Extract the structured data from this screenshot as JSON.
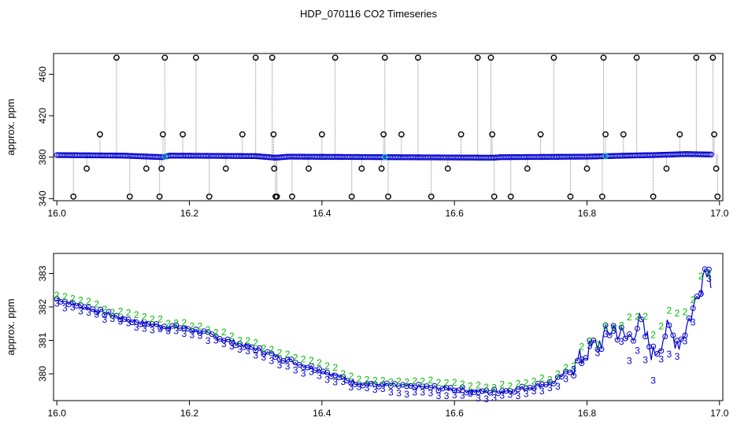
{
  "title": "HDP_070116  CO2 Timeseries",
  "chart_data": [
    {
      "type": "scatter",
      "xlabel": "",
      "ylabel": "approx. ppm",
      "xlim": [
        15.995,
        17.005
      ],
      "ylim": [
        338,
        480
      ],
      "xticks": [
        16.0,
        16.2,
        16.4,
        16.6,
        16.8,
        17.0
      ],
      "xtick_labels": [
        "16.0",
        "16.2",
        "16.4",
        "16.6",
        "16.8",
        "17.0"
      ],
      "yticks": [
        340,
        380,
        420,
        460
      ],
      "ytick_labels": [
        "340",
        "380",
        "420",
        "460"
      ],
      "grid": false,
      "colors": {
        "baseline": "#0000cc",
        "spike": "#000000",
        "highlight": "#00cccc",
        "spike_line": "#888888"
      },
      "baseline_series": {
        "name": "",
        "x": [
          16.0,
          16.1,
          16.16,
          16.17,
          16.3,
          16.33,
          16.35,
          16.5,
          16.66,
          16.67,
          16.8,
          16.83,
          16.86,
          16.9,
          16.95,
          16.99
        ],
        "y": [
          382,
          381.5,
          380,
          381.5,
          381,
          379.5,
          380.5,
          380,
          379.5,
          380,
          380.5,
          381,
          381.5,
          382,
          383,
          382.5
        ]
      },
      "spikes": {
        "name": "",
        "x": [
          16.025,
          16.045,
          16.065,
          16.09,
          16.11,
          16.135,
          16.155,
          16.158,
          16.16,
          16.163,
          16.19,
          16.21,
          16.23,
          16.255,
          16.28,
          16.3,
          16.325,
          16.327,
          16.328,
          16.33,
          16.332,
          16.355,
          16.38,
          16.4,
          16.42,
          16.445,
          16.46,
          16.49,
          16.493,
          16.495,
          16.5,
          16.52,
          16.545,
          16.565,
          16.59,
          16.61,
          16.635,
          16.655,
          16.657,
          16.66,
          16.685,
          16.71,
          16.73,
          16.75,
          16.775,
          16.8,
          16.823,
          16.825,
          16.828,
          16.855,
          16.875,
          16.9,
          16.92,
          16.94,
          16.965,
          16.99,
          16.992,
          16.995,
          16.997
        ],
        "y": [
          342,
          369,
          402,
          476,
          342,
          369,
          342,
          369,
          402,
          476,
          402,
          476,
          342,
          369,
          402,
          476,
          476,
          402,
          369,
          342,
          342,
          342,
          369,
          402,
          476,
          342,
          369,
          369,
          402,
          476,
          342,
          402,
          476,
          342,
          369,
          402,
          476,
          476,
          402,
          342,
          342,
          369,
          402,
          476,
          342,
          369,
          342,
          476,
          402,
          402,
          476,
          342,
          369,
          402,
          476,
          476,
          402,
          369,
          342
        ]
      }
    },
    {
      "type": "scatter",
      "xlabel": "",
      "ylabel": "approx. ppm",
      "xlim": [
        15.995,
        17.005
      ],
      "ylim": [
        379.2,
        383.6
      ],
      "xticks": [
        16.0,
        16.2,
        16.4,
        16.6,
        16.8,
        17.0
      ],
      "xtick_labels": [
        "16.0",
        "16.2",
        "16.4",
        "16.6",
        "16.8",
        "17.0"
      ],
      "yticks": [
        380,
        381,
        382,
        383
      ],
      "ytick_labels": [
        "380",
        "381",
        "382",
        "383"
      ],
      "grid": false,
      "colors": {
        "line": "#0000cc",
        "series_2": "#00bb00",
        "series_3": "#0000cc",
        "marker": "#0000cc"
      },
      "series": [
        {
          "name": "2",
          "symbol": "2",
          "x": [
            16.0,
            16.05,
            16.1,
            16.15,
            16.2,
            16.25,
            16.3,
            16.35,
            16.4,
            16.45,
            16.5,
            16.55,
            16.6,
            16.65,
            16.7,
            16.75,
            16.78,
            16.8,
            16.82,
            16.84,
            16.86,
            16.88,
            16.9,
            16.92,
            16.94,
            16.96,
            16.98,
            16.99
          ],
          "y": [
            382.4,
            382.1,
            381.8,
            381.6,
            381.5,
            381.2,
            380.9,
            380.6,
            380.3,
            379.9,
            379.8,
            379.8,
            379.7,
            379.6,
            379.7,
            379.9,
            380.4,
            380.8,
            381.1,
            381.6,
            381.4,
            382.1,
            381.3,
            382.0,
            381.6,
            382.5,
            383.2,
            382.8
          ]
        },
        {
          "name": "3",
          "symbol": "3",
          "x": [
            16.0,
            16.05,
            16.1,
            16.15,
            16.2,
            16.25,
            16.3,
            16.35,
            16.4,
            16.45,
            16.5,
            16.55,
            16.6,
            16.65,
            16.7,
            16.75,
            16.78,
            16.8,
            16.82,
            16.84,
            16.86,
            16.88,
            16.9,
            16.92,
            16.94,
            16.96,
            16.98,
            16.99
          ],
          "y": [
            382.1,
            381.8,
            381.5,
            381.3,
            381.2,
            380.9,
            380.6,
            380.2,
            379.9,
            379.6,
            379.5,
            379.4,
            379.4,
            379.3,
            379.4,
            379.6,
            380.0,
            380.5,
            380.8,
            381.2,
            380.6,
            381.0,
            379.8,
            380.6,
            380.3,
            381.3,
            383.4,
            382.5
          ]
        }
      ]
    }
  ]
}
